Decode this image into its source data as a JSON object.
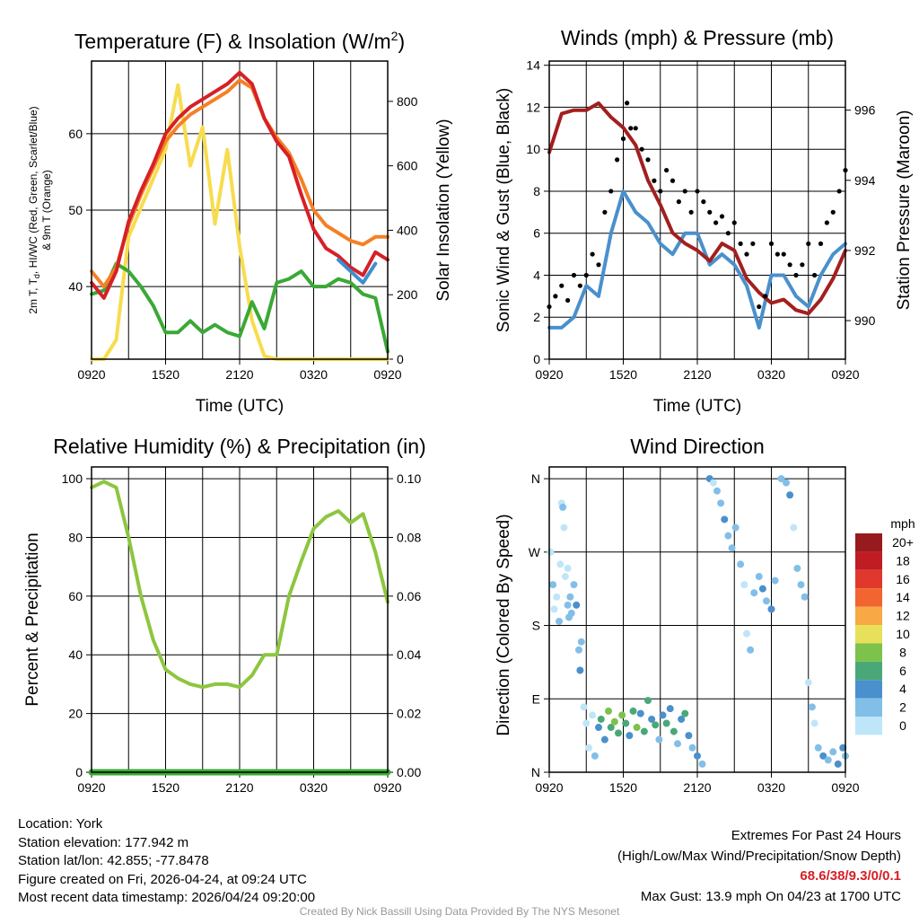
{
  "footer": {
    "location": "Location: York",
    "elevation": "Station elevation: 177.942 m",
    "latlon": "Station lat/lon: 42.855; -77.8478",
    "created": "Figure created on Fri, 2026-04-24, at 09:24 UTC",
    "recent": "Most recent data timestamp: 2026/04/24 09:20:00",
    "extremes_title": "Extremes For Past 24 Hours",
    "extremes_sub": "(High/Low/Max Wind/Precipitation/Snow Depth)",
    "extremes_values": "68.6/38/9.3/0/0.1",
    "max_gust": "Max Gust: 13.9 mph On 04/23 at 1700 UTC",
    "credit": "Created By Nick Bassill Using Data Provided By The NYS Mesonet",
    "extremes_color": "#d62027"
  },
  "chart_data": [
    {
      "type": "line",
      "title_main": "Temperature (F) & Insolation (W/m",
      "title_sup": "2",
      "title_end": ")",
      "xlabel": "Time (UTC)",
      "ylabel_line1": "2m T, T",
      "ylabel_sub": "d",
      "ylabel_line1_end": ", HI/WC (Red, Green, Scarlet/Blue)",
      "ylabel_line2": "& 9m T (Orange)",
      "y2label": "Solar Insolation (Yellow)",
      "x_hours": [
        0,
        1,
        2,
        3,
        4,
        5,
        6,
        7,
        8,
        9,
        10,
        11,
        12,
        13,
        14,
        15,
        16,
        17,
        18,
        19,
        20,
        21,
        22,
        23,
        24
      ],
      "xticks": [
        "0920",
        "1520",
        "2120",
        "0320",
        "0920"
      ],
      "ylim": [
        30.5,
        69.5
      ],
      "y2lim": [
        0,
        925
      ],
      "yticks": [
        "40",
        "50",
        "60"
      ],
      "y2ticks": [
        "0",
        "200",
        "400",
        "600",
        "800"
      ],
      "series": [
        {
          "name": "Solar Insolation",
          "axis": "right",
          "color": "#f7dc4f",
          "values": [
            0,
            0,
            60,
            380,
            470,
            560,
            650,
            850,
            600,
            720,
            420,
            650,
            350,
            120,
            10,
            0,
            0,
            0,
            0,
            0,
            0,
            0,
            0,
            0,
            0
          ]
        },
        {
          "name": "2m Dewpoint",
          "axis": "left",
          "color": "#3aa935",
          "values": [
            39,
            39.5,
            43,
            42,
            40,
            37.5,
            34,
            34,
            35.5,
            34,
            35,
            34,
            33.5,
            38,
            34.5,
            40.5,
            41,
            42,
            40,
            40,
            41,
            40.5,
            39,
            38.5,
            31.5
          ]
        },
        {
          "name": "9m T",
          "axis": "left",
          "color": "#f58025",
          "values": [
            42,
            40,
            42.5,
            48,
            52,
            55.5,
            59,
            61,
            62.5,
            63.5,
            64.5,
            65.5,
            67,
            66,
            62,
            59.5,
            57.5,
            54,
            50,
            48,
            47,
            46,
            45.5,
            46.5,
            46.5
          ]
        },
        {
          "name": "2m T",
          "axis": "left",
          "color": "#d62027",
          "values": [
            40.5,
            38.5,
            42,
            48.5,
            52.5,
            56,
            60,
            62,
            63.5,
            64.5,
            65.5,
            66.5,
            68,
            66.5,
            62,
            59,
            57,
            52,
            47.5,
            45,
            44,
            42.5,
            41.5,
            44.5,
            43.5
          ]
        },
        {
          "name": "HI/WC",
          "axis": "left",
          "color": "#3d8fd0",
          "hours": [
            20,
            21,
            22,
            23
          ],
          "values": [
            43.5,
            42,
            40.5,
            43
          ]
        }
      ]
    },
    {
      "type": "line",
      "title": "Winds (mph) & Pressure (mb)",
      "xlabel": "Time (UTC)",
      "ylabel": "Sonic Wind & Gust (Blue, Black)",
      "y2label": "Station Pressure (Maroon)",
      "x_hours": [
        0,
        1,
        2,
        3,
        4,
        5,
        6,
        7,
        8,
        9,
        10,
        11,
        12,
        13,
        14,
        15,
        16,
        17,
        18,
        19,
        20,
        21,
        22,
        23,
        24
      ],
      "xticks": [
        "0920",
        "1520",
        "2120",
        "0320",
        "0920"
      ],
      "ylim": [
        0,
        14.2
      ],
      "y2lim": [
        988.9,
        997.4
      ],
      "yticks": [
        "0",
        "2",
        "4",
        "6",
        "8",
        "10",
        "12",
        "14"
      ],
      "y2ticks": [
        "990",
        "992",
        "994",
        "996"
      ],
      "series": [
        {
          "name": "Sonic Wind",
          "axis": "left",
          "color": "#4a90cc",
          "values": [
            1.5,
            1.5,
            2,
            3.5,
            3,
            6,
            8,
            7,
            6.5,
            5.5,
            5,
            6,
            6,
            4.5,
            5,
            4.5,
            3.5,
            1.5,
            4,
            4,
            3,
            2.5,
            4,
            5,
            5.5
          ]
        },
        {
          "name": "Station Pressure",
          "axis": "right",
          "color": "#a31f1f",
          "values": [
            994.8,
            995.9,
            996,
            996,
            996.2,
            995.8,
            995.5,
            995,
            994,
            993.3,
            992.5,
            992.2,
            992,
            991.7,
            992.2,
            992,
            991.2,
            990.8,
            990.5,
            990.6,
            990.3,
            990.2,
            990.6,
            991.2,
            992
          ]
        }
      ],
      "gusts": {
        "name": "Gust",
        "color": "#000000",
        "hours": [
          0,
          0.5,
          1,
          1.5,
          2,
          2.5,
          3,
          3.5,
          4,
          4.5,
          5,
          5.5,
          6,
          6.3,
          6.6,
          7,
          7.5,
          8,
          8.5,
          9,
          9.5,
          10,
          10.5,
          11,
          11.5,
          12,
          12.5,
          13,
          13.5,
          14,
          14.5,
          15,
          15.5,
          16,
          16.5,
          17,
          17.5,
          18,
          18.5,
          19,
          19.5,
          20,
          20.5,
          21,
          21.5,
          22,
          22.5,
          23,
          23.5,
          24
        ],
        "values": [
          2.5,
          3,
          3.5,
          2.8,
          4,
          3.5,
          4,
          5,
          4.5,
          7,
          8,
          9.5,
          10.5,
          12.2,
          11,
          11,
          10,
          9.5,
          8.5,
          8,
          9,
          8.5,
          7.5,
          8,
          7,
          8,
          7.5,
          7,
          6.5,
          6.8,
          6,
          6.5,
          5.5,
          5,
          5.5,
          2.5,
          3,
          5.5,
          5,
          5,
          4.5,
          4,
          4.5,
          5.5,
          4,
          5.5,
          6.5,
          7,
          8,
          9
        ]
      }
    },
    {
      "type": "line",
      "title": "Relative Humidity (%) & Precipitation (in)",
      "xlabel": "",
      "ylabel": "Percent & Precipitation",
      "x_hours": [
        0,
        1,
        2,
        3,
        4,
        5,
        6,
        7,
        8,
        9,
        10,
        11,
        12,
        13,
        14,
        15,
        16,
        17,
        18,
        19,
        20,
        21,
        22,
        23,
        24
      ],
      "xticks": [
        "0920",
        "1520",
        "2120",
        "0320",
        "0920"
      ],
      "ylim": [
        0,
        104
      ],
      "y2lim": [
        0,
        0.104
      ],
      "yticks": [
        "0",
        "20",
        "40",
        "60",
        "80",
        "100"
      ],
      "y2ticks": [
        "0.00",
        "0.02",
        "0.04",
        "0.06",
        "0.08",
        "0.10"
      ],
      "series": [
        {
          "name": "Relative Humidity",
          "axis": "left",
          "color": "#8dc63f",
          "values": [
            97,
            99,
            97,
            80,
            60,
            45,
            35,
            32,
            30,
            29,
            30,
            30,
            29,
            33,
            40,
            40,
            60,
            72,
            83,
            87,
            89,
            85,
            88,
            75,
            58
          ]
        },
        {
          "name": "Precipitation",
          "axis": "right",
          "color": "#3aa935",
          "values": [
            0,
            0,
            0,
            0,
            0,
            0,
            0,
            0,
            0,
            0,
            0,
            0,
            0,
            0,
            0,
            0,
            0,
            0,
            0,
            0,
            0,
            0,
            0,
            0,
            0
          ]
        }
      ]
    },
    {
      "type": "scatter",
      "title": "Wind Direction",
      "ylabel": "Direction (Colored By Speed)",
      "xticks": [
        "0920",
        "1520",
        "2120",
        "0320",
        "0920"
      ],
      "ylim": [
        0,
        374.4
      ],
      "ytick_values": [
        0,
        90,
        180,
        270,
        360
      ],
      "yticks": [
        "N",
        "E",
        "S",
        "W",
        "N"
      ],
      "legend": {
        "title": "mph",
        "placement": "right",
        "labels": [
          "20+",
          "18",
          "16",
          "14",
          "12",
          "10",
          "8",
          "6",
          "4",
          "2",
          "0"
        ],
        "colors": [
          "#961a1e",
          "#c01c24",
          "#e0382c",
          "#f26430",
          "#f8a844",
          "#e8e05a",
          "#7dc24b",
          "#4aa878",
          "#4a90cc",
          "#82bfe8",
          "#bfe6f8"
        ]
      },
      "points": [
        [
          0.1,
          270,
          1
        ],
        [
          0.3,
          230,
          2
        ],
        [
          0.4,
          200,
          1
        ],
        [
          0.6,
          215,
          1
        ],
        [
          0.8,
          185,
          2
        ],
        [
          0.9,
          255,
          1
        ],
        [
          1.0,
          330,
          1
        ],
        [
          1.1,
          325,
          2
        ],
        [
          1.2,
          300,
          1
        ],
        [
          1.3,
          240,
          1
        ],
        [
          1.5,
          250,
          1
        ],
        [
          1.5,
          205,
          3
        ],
        [
          1.6,
          190,
          3
        ],
        [
          1.7,
          215,
          2
        ],
        [
          1.8,
          195,
          3
        ],
        [
          2.0,
          230,
          3
        ],
        [
          2.2,
          205,
          4
        ],
        [
          2.4,
          150,
          2
        ],
        [
          2.5,
          125,
          4
        ],
        [
          2.6,
          160,
          3
        ],
        [
          2.8,
          80,
          1
        ],
        [
          3.0,
          60,
          1
        ],
        [
          3.2,
          30,
          1
        ],
        [
          3.5,
          70,
          1
        ],
        [
          3.7,
          20,
          3
        ],
        [
          4.0,
          55,
          4
        ],
        [
          4.2,
          65,
          6
        ],
        [
          4.5,
          40,
          4
        ],
        [
          4.8,
          75,
          8
        ],
        [
          5.0,
          55,
          6
        ],
        [
          5.3,
          62,
          8
        ],
        [
          5.6,
          48,
          6
        ],
        [
          5.9,
          70,
          8
        ],
        [
          6.2,
          60,
          6
        ],
        [
          6.5,
          45,
          4
        ],
        [
          6.8,
          75,
          6
        ],
        [
          7.1,
          55,
          8
        ],
        [
          7.4,
          72,
          4
        ],
        [
          7.7,
          50,
          6
        ],
        [
          8.0,
          88,
          6
        ],
        [
          8.3,
          65,
          4
        ],
        [
          8.6,
          58,
          6
        ],
        [
          8.9,
          40,
          2
        ],
        [
          9.2,
          70,
          4
        ],
        [
          9.5,
          60,
          6
        ],
        [
          9.8,
          78,
          4
        ],
        [
          10.1,
          50,
          6
        ],
        [
          10.4,
          35,
          2
        ],
        [
          10.7,
          65,
          4
        ],
        [
          11.0,
          72,
          6
        ],
        [
          11.3,
          45,
          4
        ],
        [
          11.6,
          30,
          2
        ],
        [
          12.0,
          20,
          4
        ],
        [
          12.4,
          10,
          3
        ],
        [
          13.0,
          360,
          4
        ],
        [
          13.3,
          355,
          1
        ],
        [
          13.6,
          345,
          2
        ],
        [
          13.9,
          330,
          3
        ],
        [
          14.2,
          310,
          4
        ],
        [
          14.5,
          290,
          2
        ],
        [
          14.8,
          275,
          3
        ],
        [
          15.1,
          300,
          2
        ],
        [
          15.5,
          255,
          2
        ],
        [
          15.8,
          230,
          1
        ],
        [
          16.0,
          170,
          1
        ],
        [
          16.3,
          150,
          2
        ],
        [
          16.6,
          220,
          3
        ],
        [
          17.0,
          240,
          2
        ],
        [
          17.3,
          225,
          4
        ],
        [
          17.6,
          210,
          3
        ],
        [
          18.0,
          200,
          4
        ],
        [
          18.3,
          235,
          2
        ],
        [
          18.8,
          360,
          3
        ],
        [
          19.2,
          355,
          2
        ],
        [
          19.5,
          340,
          4
        ],
        [
          19.8,
          300,
          1
        ],
        [
          20.1,
          250,
          2
        ],
        [
          20.4,
          230,
          3
        ],
        [
          20.7,
          215,
          2
        ],
        [
          21.0,
          110,
          1
        ],
        [
          21.3,
          80,
          2
        ],
        [
          21.5,
          60,
          1
        ],
        [
          21.8,
          30,
          2
        ],
        [
          22.2,
          20,
          4
        ],
        [
          22.6,
          15,
          3
        ],
        [
          23.0,
          25,
          2
        ],
        [
          23.4,
          10,
          4
        ],
        [
          23.8,
          30,
          4
        ],
        [
          24.0,
          20,
          2
        ]
      ]
    }
  ]
}
